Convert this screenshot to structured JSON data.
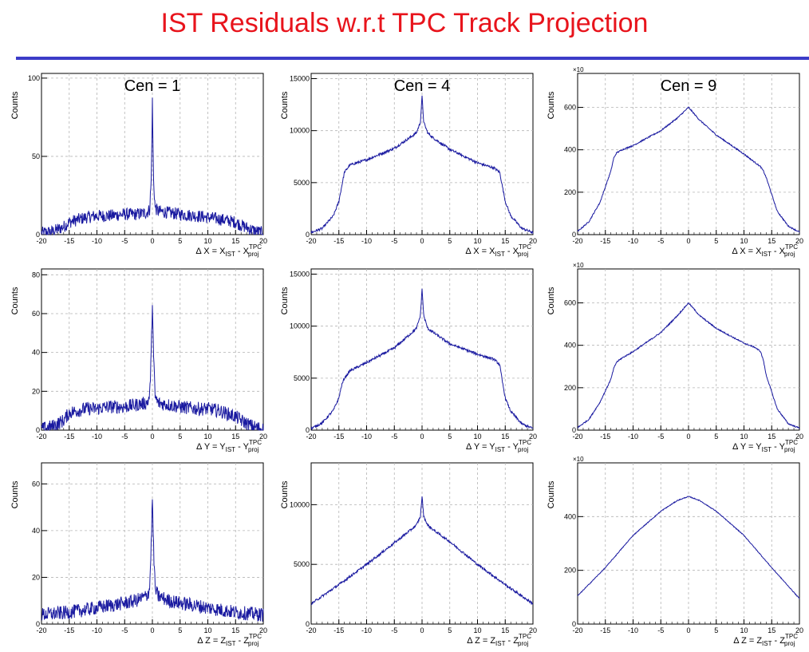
{
  "title": "IST Residuals w.r.t TPC Track Projection",
  "colors": {
    "title": "#e8141c",
    "rule": "#3c3cc8",
    "line": "#1a1aa0",
    "grid": "#b4b4b4"
  },
  "chart_data": [
    {
      "id": "r1c1",
      "type": "line",
      "annotation": "Cen = 1",
      "ylabel": "Counts",
      "xlabel": {
        "var": "X",
        "sub1": "IST",
        "sup": "TPC",
        "sub2": "proj"
      },
      "xlim": [
        -20,
        20
      ],
      "ylim": [
        0,
        103
      ],
      "xticks": [
        -20,
        -15,
        -10,
        -5,
        0,
        5,
        10,
        15,
        20
      ],
      "yticks": [
        0,
        50,
        100
      ],
      "grid": true,
      "legend": "none",
      "x": [
        -20,
        -18,
        -16,
        -15,
        -12,
        -10,
        -8,
        -5,
        -3,
        -1,
        -0.5,
        -0.2,
        0,
        0.2,
        0.5,
        1,
        3,
        5,
        8,
        10,
        12,
        15,
        16,
        18,
        20
      ],
      "y": [
        1,
        2,
        5,
        8,
        11,
        12,
        12,
        13,
        13,
        14,
        16,
        35,
        85,
        35,
        17,
        15,
        14,
        13,
        12,
        11,
        10,
        8,
        6,
        3,
        1
      ],
      "noise": 4
    },
    {
      "id": "r1c2",
      "type": "line",
      "annotation": "Cen = 4",
      "ylabel": "Counts",
      "xlabel": {
        "var": "X",
        "sub1": "IST",
        "sup": "TPC",
        "sub2": "proj"
      },
      "xlim": [
        -20,
        20
      ],
      "ylim": [
        0,
        15500
      ],
      "xticks": [
        -20,
        -15,
        -10,
        -5,
        0,
        5,
        10,
        15,
        20
      ],
      "yticks": [
        0,
        5000,
        10000,
        15000
      ],
      "grid": true,
      "legend": "none",
      "x": [
        -20,
        -18,
        -16,
        -15,
        -14.5,
        -14,
        -13,
        -10,
        -5,
        -2,
        -1,
        -0.3,
        0,
        0.3,
        1,
        2,
        5,
        10,
        13,
        14,
        14.5,
        15,
        16,
        18,
        20
      ],
      "y": [
        200,
        600,
        1800,
        3200,
        4600,
        6000,
        6700,
        7200,
        8300,
        9400,
        9800,
        10800,
        13300,
        10800,
        9800,
        9300,
        8200,
        6900,
        6400,
        6000,
        4600,
        3200,
        1800,
        600,
        200
      ],
      "noise": 120
    },
    {
      "id": "r1c3",
      "type": "line",
      "annotation": "Cen = 9",
      "ylabel": "Counts",
      "xlabel": {
        "var": "X",
        "sub1": "IST",
        "sup": "TPC",
        "sub2": "proj"
      },
      "xlim": [
        -20,
        20
      ],
      "ylim": [
        0,
        760
      ],
      "xticks": [
        -20,
        -15,
        -10,
        -5,
        0,
        5,
        10,
        15,
        20
      ],
      "yticks": [
        0,
        200,
        400,
        600
      ],
      "multiplier": "×10",
      "grid": true,
      "legend": "none",
      "x": [
        -20,
        -18,
        -16,
        -14,
        -13.5,
        -13,
        -12,
        -10,
        -5,
        -2,
        0,
        2,
        5,
        10,
        12,
        13,
        13.5,
        14,
        16,
        18,
        20
      ],
      "y": [
        15,
        60,
        150,
        300,
        360,
        385,
        400,
        420,
        490,
        550,
        600,
        540,
        470,
        380,
        340,
        320,
        300,
        270,
        110,
        40,
        12
      ],
      "noise": 3
    },
    {
      "id": "r2c1",
      "type": "line",
      "annotation": "",
      "ylabel": "Counts",
      "xlabel": {
        "var": "Y",
        "sub1": "IST",
        "sup": "TPC",
        "sub2": "proj"
      },
      "xlim": [
        -20,
        20
      ],
      "ylim": [
        0,
        83
      ],
      "xticks": [
        -20,
        -15,
        -10,
        -5,
        0,
        5,
        10,
        15,
        20
      ],
      "yticks": [
        0,
        20,
        40,
        60,
        80
      ],
      "grid": true,
      "legend": "none",
      "x": [
        -20,
        -18,
        -16,
        -15,
        -12,
        -10,
        -8,
        -5,
        -3,
        -1,
        -0.5,
        -0.2,
        0,
        0.2,
        0.5,
        1,
        3,
        5,
        8,
        10,
        12,
        15,
        16,
        18,
        20
      ],
      "y": [
        0.5,
        2,
        5,
        9,
        11,
        11,
        12,
        12,
        13,
        14,
        17,
        40,
        67,
        38,
        17,
        14,
        13,
        12,
        11,
        11,
        10,
        7,
        5,
        2,
        0.5
      ],
      "noise": 3.5
    },
    {
      "id": "r2c2",
      "type": "line",
      "annotation": "",
      "ylabel": "Counts",
      "xlabel": {
        "var": "Y",
        "sub1": "IST",
        "sup": "TPC",
        "sub2": "proj"
      },
      "xlim": [
        -20,
        20
      ],
      "ylim": [
        0,
        15500
      ],
      "xticks": [
        -20,
        -15,
        -10,
        -5,
        0,
        5,
        10,
        15,
        20
      ],
      "yticks": [
        0,
        5000,
        10000,
        15000
      ],
      "grid": true,
      "legend": "none",
      "x": [
        -20,
        -18,
        -16,
        -15,
        -14.5,
        -14,
        -13,
        -10,
        -5,
        -2,
        -1,
        -0.3,
        0,
        0.3,
        1,
        2,
        5,
        10,
        13,
        14,
        14.5,
        15,
        16,
        18,
        20
      ],
      "y": [
        150,
        700,
        1900,
        3100,
        4300,
        5000,
        5700,
        6500,
        7900,
        9300,
        9800,
        11000,
        13600,
        11000,
        9800,
        9400,
        8300,
        7300,
        6800,
        6300,
        4600,
        3100,
        1800,
        600,
        150
      ],
      "noise": 120
    },
    {
      "id": "r2c3",
      "type": "line",
      "annotation": "",
      "ylabel": "Counts",
      "xlabel": {
        "var": "Y",
        "sub1": "IST",
        "sup": "TPC",
        "sub2": "proj"
      },
      "xlim": [
        -20,
        20
      ],
      "ylim": [
        0,
        760
      ],
      "xticks": [
        -20,
        -15,
        -10,
        -5,
        0,
        5,
        10,
        15,
        20
      ],
      "yticks": [
        0,
        200,
        400,
        600
      ],
      "multiplier": "×10",
      "grid": true,
      "legend": "none",
      "x": [
        -20,
        -18,
        -16,
        -14,
        -13.5,
        -13,
        -12,
        -10,
        -5,
        -2,
        0,
        2,
        5,
        10,
        12,
        13,
        13.5,
        14,
        16,
        18,
        20
      ],
      "y": [
        12,
        50,
        130,
        240,
        290,
        320,
        340,
        370,
        460,
        540,
        600,
        540,
        480,
        410,
        390,
        370,
        330,
        260,
        100,
        30,
        10
      ],
      "noise": 3
    },
    {
      "id": "r3c1",
      "type": "line",
      "annotation": "",
      "ylabel": "Counts",
      "xlabel": {
        "var": "Z",
        "sub1": "IST",
        "sup": "TPC",
        "sub2": "proj"
      },
      "xlim": [
        -20,
        20
      ],
      "ylim": [
        0,
        69
      ],
      "xticks": [
        -20,
        -15,
        -10,
        -5,
        0,
        5,
        10,
        15,
        20
      ],
      "yticks": [
        0,
        20,
        40,
        60
      ],
      "grid": true,
      "legend": "none",
      "x": [
        -20,
        -15,
        -10,
        -5,
        -3,
        -1,
        -0.5,
        -0.2,
        0,
        0.2,
        0.5,
        1,
        3,
        5,
        10,
        15,
        20
      ],
      "y": [
        4,
        5,
        7,
        9,
        10,
        12,
        15,
        35,
        54,
        33,
        15,
        12,
        10,
        9,
        7,
        5,
        4
      ],
      "noise": 3
    },
    {
      "id": "r3c2",
      "type": "line",
      "annotation": "",
      "ylabel": "Counts",
      "xlabel": {
        "var": "Z",
        "sub1": "IST",
        "sup": "TPC",
        "sub2": "proj"
      },
      "xlim": [
        -20,
        20
      ],
      "ylim": [
        0,
        13500
      ],
      "xticks": [
        -20,
        -15,
        -10,
        -5,
        0,
        5,
        10,
        15,
        20
      ],
      "yticks": [
        0,
        5000,
        10000
      ],
      "grid": true,
      "legend": "none",
      "x": [
        -20,
        -15,
        -10,
        -5,
        -2,
        -1,
        -0.3,
        0,
        0.3,
        1,
        2,
        5,
        10,
        15,
        20
      ],
      "y": [
        1700,
        3300,
        5000,
        6800,
        7900,
        8300,
        9000,
        10700,
        9000,
        8300,
        7900,
        6900,
        5000,
        3300,
        1700
      ],
      "noise": 100
    },
    {
      "id": "r3c3",
      "type": "line",
      "annotation": "",
      "ylabel": "Counts",
      "xlabel": {
        "var": "Z",
        "sub1": "IST",
        "sup": "TPC",
        "sub2": "proj"
      },
      "xlim": [
        -20,
        20
      ],
      "ylim": [
        0,
        600
      ],
      "xticks": [
        -20,
        -15,
        -10,
        -5,
        0,
        5,
        10,
        15,
        20
      ],
      "yticks": [
        0,
        200,
        400
      ],
      "multiplier": "×10",
      "grid": true,
      "legend": "none",
      "x": [
        -20,
        -15,
        -10,
        -5,
        -2,
        0,
        2,
        5,
        10,
        15,
        20
      ],
      "y": [
        105,
        210,
        330,
        420,
        460,
        475,
        460,
        420,
        330,
        210,
        95
      ],
      "noise": 1.5
    }
  ]
}
